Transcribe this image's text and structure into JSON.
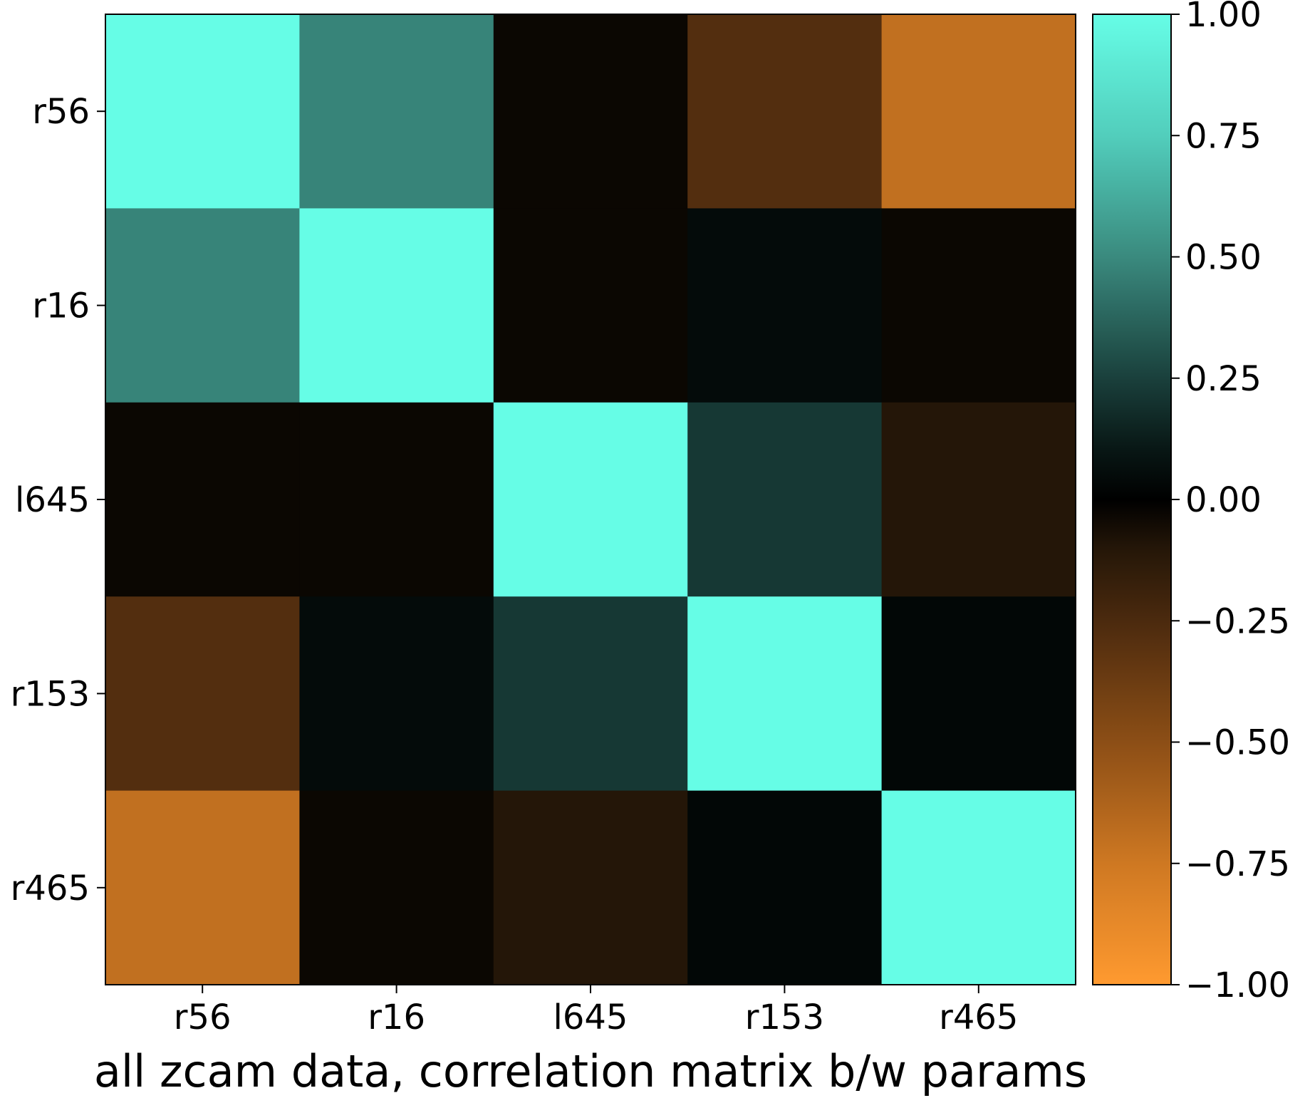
{
  "chart_data": {
    "type": "heatmap",
    "title": "",
    "xlabel": "all zcam data, correlation matrix b/w params",
    "ylabel": "",
    "rows": [
      "r56",
      "r16",
      "l645",
      "r153",
      "r465"
    ],
    "columns": [
      "r56",
      "r16",
      "l645",
      "r153",
      "r465"
    ],
    "values": [
      [
        1.0,
        0.48,
        -0.03,
        -0.28,
        -0.7
      ],
      [
        0.48,
        1.0,
        -0.03,
        0.05,
        -0.03
      ],
      [
        -0.03,
        -0.03,
        1.0,
        0.22,
        -0.1
      ],
      [
        -0.28,
        0.05,
        0.22,
        1.0,
        0.03
      ],
      [
        -0.7,
        -0.03,
        -0.1,
        0.03,
        1.0
      ]
    ],
    "colorbar": {
      "range": [
        -1.0,
        1.0
      ],
      "ticks": [
        "1.00",
        "0.75",
        "0.50",
        "0.25",
        "0.00",
        "−0.25",
        "−0.50",
        "−0.75",
        "−1.00"
      ],
      "tick_values": [
        1.0,
        0.75,
        0.5,
        0.25,
        0.0,
        -0.25,
        -0.5,
        -0.75,
        -1.0
      ],
      "colormap": "berlin-like diverging (orange to black to cyan)"
    },
    "colors": {
      "positive_end": "#66fde6",
      "center": "#000000",
      "negative_end": "#ff9a30"
    },
    "grid": false
  }
}
